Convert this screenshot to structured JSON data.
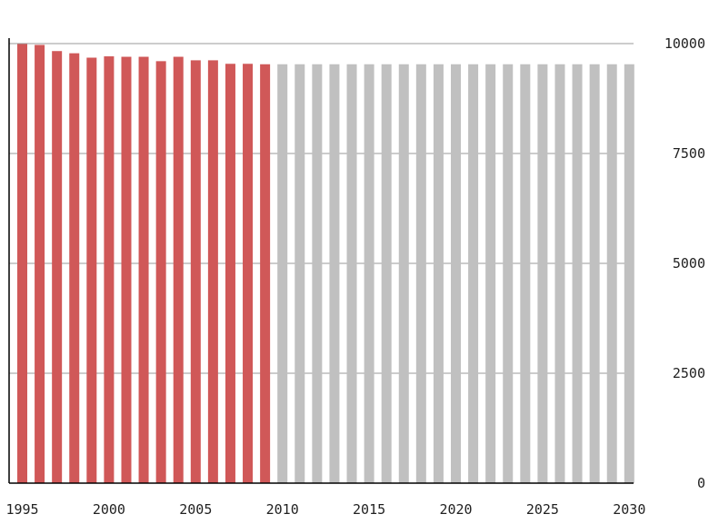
{
  "chart_data": {
    "type": "bar",
    "title": "",
    "xlabel": "",
    "ylabel": "",
    "ylim": [
      0,
      10000
    ],
    "y_ticks": [
      "0",
      "2500",
      "5000",
      "7500",
      "10000"
    ],
    "x_ticks": [
      "1995",
      "2000",
      "2005",
      "2010",
      "2015",
      "2020",
      "2025",
      "2030"
    ],
    "y_axis_position": "right",
    "grid": "horizontal",
    "categories": [
      1995,
      1996,
      1997,
      1998,
      1999,
      2000,
      2001,
      2002,
      2003,
      2004,
      2005,
      2006,
      2007,
      2008,
      2009,
      2010,
      2011,
      2012,
      2013,
      2014,
      2015,
      2016,
      2017,
      2018,
      2019,
      2020,
      2021,
      2022,
      2023,
      2024,
      2025,
      2026,
      2027,
      2028,
      2029,
      2030
    ],
    "series": [
      {
        "name": "",
        "color": "#d05858",
        "values": [
          9990,
          9970,
          9830,
          9780,
          9680,
          9710,
          9700,
          9700,
          9600,
          9700,
          9620,
          9620,
          9540,
          9540,
          9530,
          null,
          null,
          null,
          null,
          null,
          null,
          null,
          null,
          null,
          null,
          null,
          null,
          null,
          null,
          null,
          null,
          null,
          null,
          null,
          null,
          null
        ]
      },
      {
        "name": "",
        "color": "#c0c0c0",
        "values": [
          null,
          null,
          null,
          null,
          null,
          null,
          null,
          null,
          null,
          null,
          null,
          null,
          null,
          null,
          null,
          9530,
          9530,
          9530,
          9530,
          9530,
          9530,
          9530,
          9530,
          9530,
          9530,
          9530,
          9530,
          9530,
          9530,
          9530,
          9530,
          9530,
          9530,
          9530,
          9530,
          9530
        ]
      }
    ]
  }
}
